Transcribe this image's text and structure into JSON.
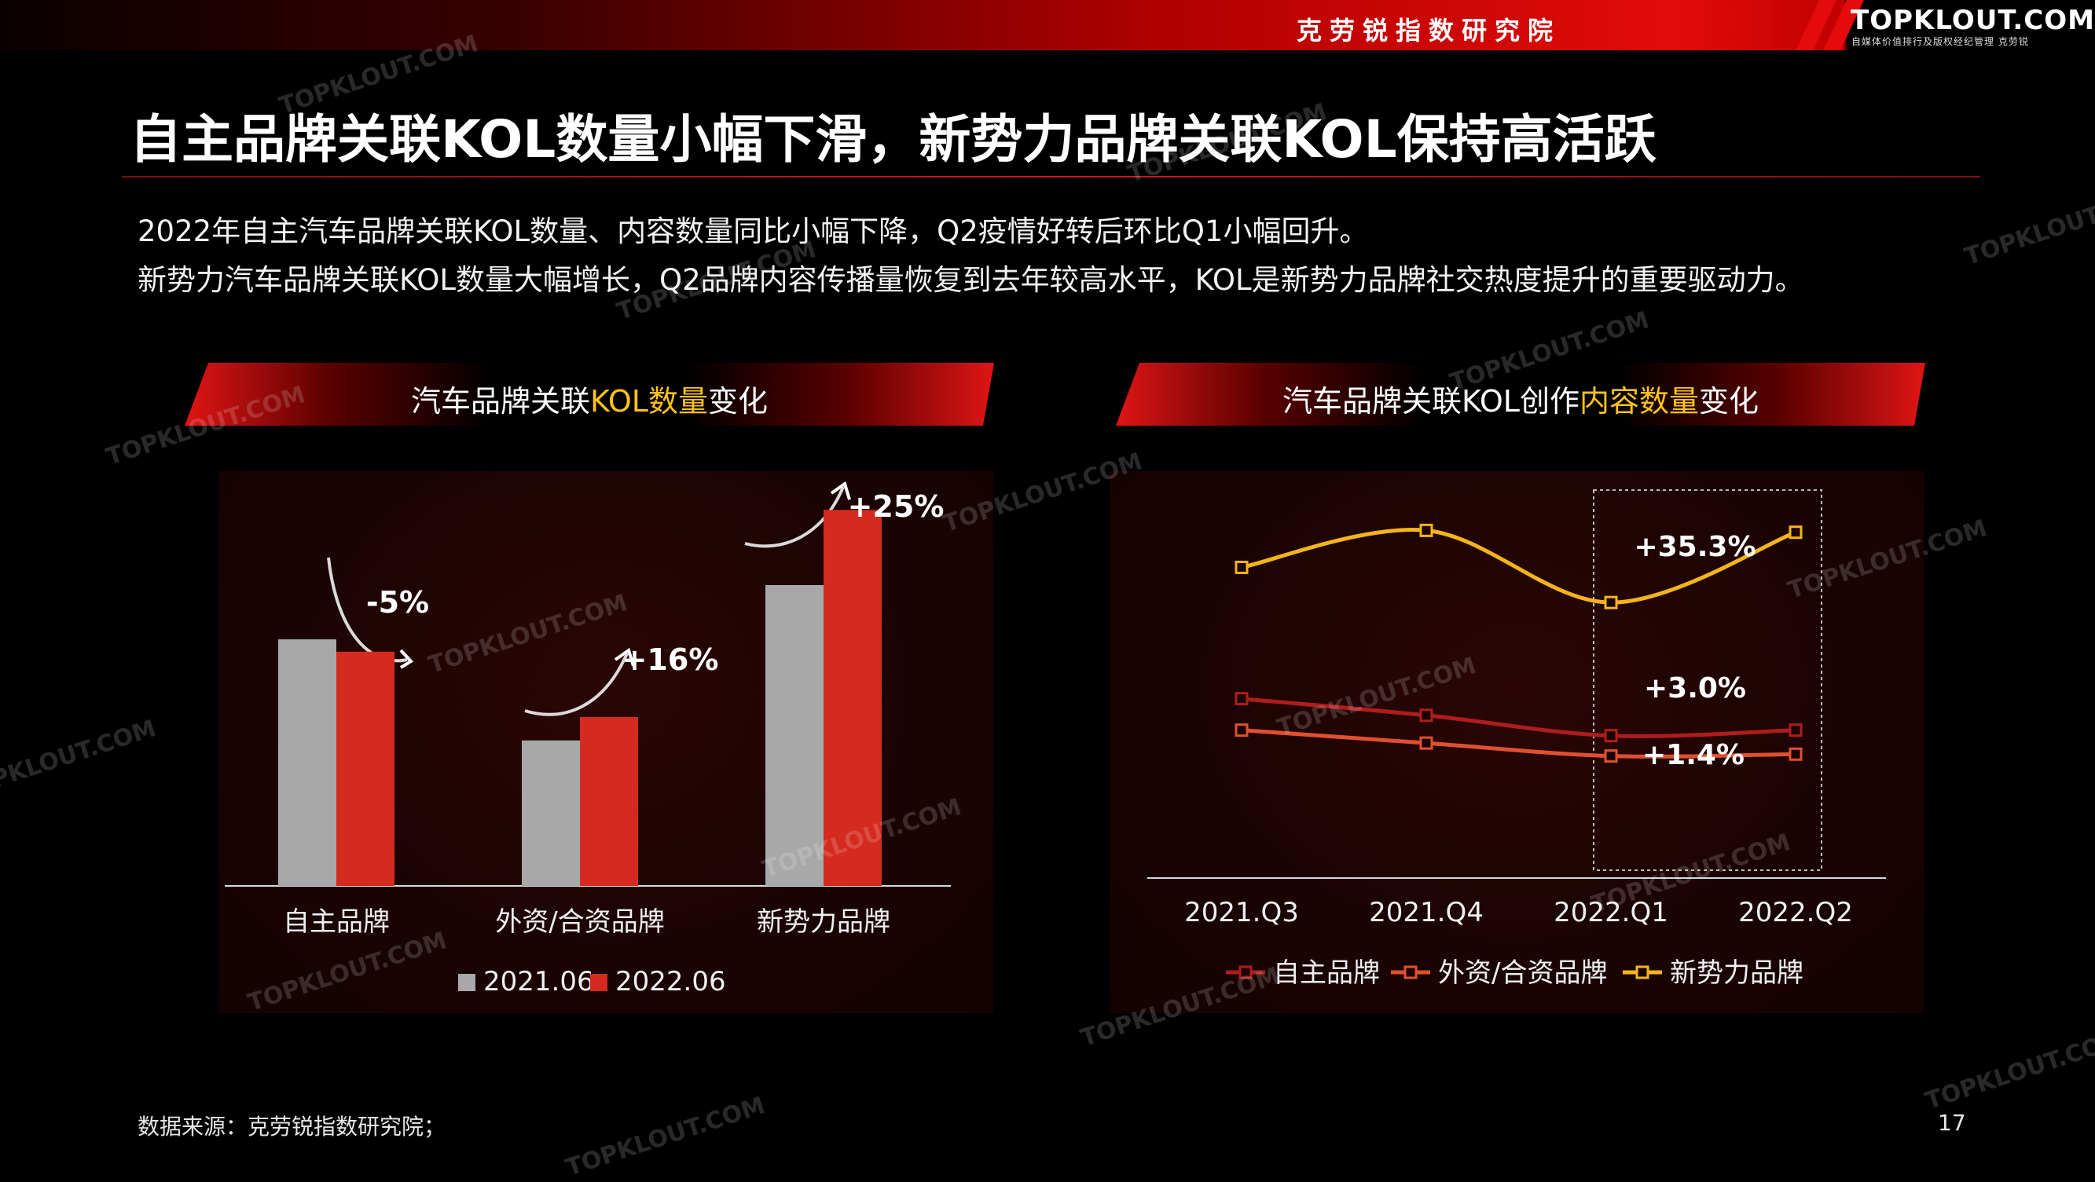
{
  "header": {
    "org_name": "克劳锐指数研究院",
    "logo_text": "TOPKLOUT.COM",
    "logo_subtext": "自媒体价值排行及版权经纪管理 克劳锐",
    "accent_color": "#e30b0b"
  },
  "title": "自主品牌关联KOL数量小幅下滑，新势力品牌关联KOL保持高活跃",
  "subtitle_lines": [
    "2022年自主汽车品牌关联KOL数量、内容数量同比小幅下降，Q2疫情好转后环比Q1小幅回升。",
    "新势力汽车品牌关联KOL数量大幅增长，Q2品牌内容传播量恢复到去年较高水平，KOL是新势力品牌社交热度提升的重要驱动力。"
  ],
  "panel_left": {
    "title_pre": "汽车品牌关联",
    "title_hl": "KOL数量",
    "title_post": "变化"
  },
  "panel_right": {
    "title_pre": "汽车品牌关联KOL创作",
    "title_hl": "内容数量",
    "title_post": "变化"
  },
  "chart_data": [
    {
      "type": "bar",
      "categories": [
        "自主品牌",
        "外资/合资品牌",
        "新势力品牌"
      ],
      "series": [
        {
          "name": "2021.06",
          "values": [
            100,
            59,
            122
          ],
          "color": "#a8a8a8"
        },
        {
          "name": "2022.06",
          "values": [
            95,
            68.5,
            152.5
          ],
          "color": "#d42a1f"
        }
      ],
      "annotations": [
        "-5%",
        "+16%",
        "+25%"
      ],
      "ylim": [
        0,
        165
      ]
    },
    {
      "type": "line",
      "categories": [
        "2021.Q3",
        "2021.Q4",
        "2022.Q1",
        "2022.Q2"
      ],
      "series": [
        {
          "name": "自主品牌",
          "values": [
            48.5,
            44,
            38.5,
            40
          ],
          "color": "#b01c1c"
        },
        {
          "name": "外资/合资品牌",
          "values": [
            40,
            36.5,
            33,
            33.5
          ],
          "color": "#e0502e"
        },
        {
          "name": "新势力品牌",
          "values": [
            84,
            94,
            74.5,
            93.5
          ],
          "color": "#f5b41a"
        }
      ],
      "annotations": [
        "+35.3%",
        "+3.0%",
        "+1.4%"
      ],
      "ylim": [
        0,
        110
      ]
    }
  ],
  "watermark_text": "TOPKLOUT.COM",
  "footer": {
    "source": "数据来源：克劳锐指数研究院；",
    "page_number": "17"
  }
}
